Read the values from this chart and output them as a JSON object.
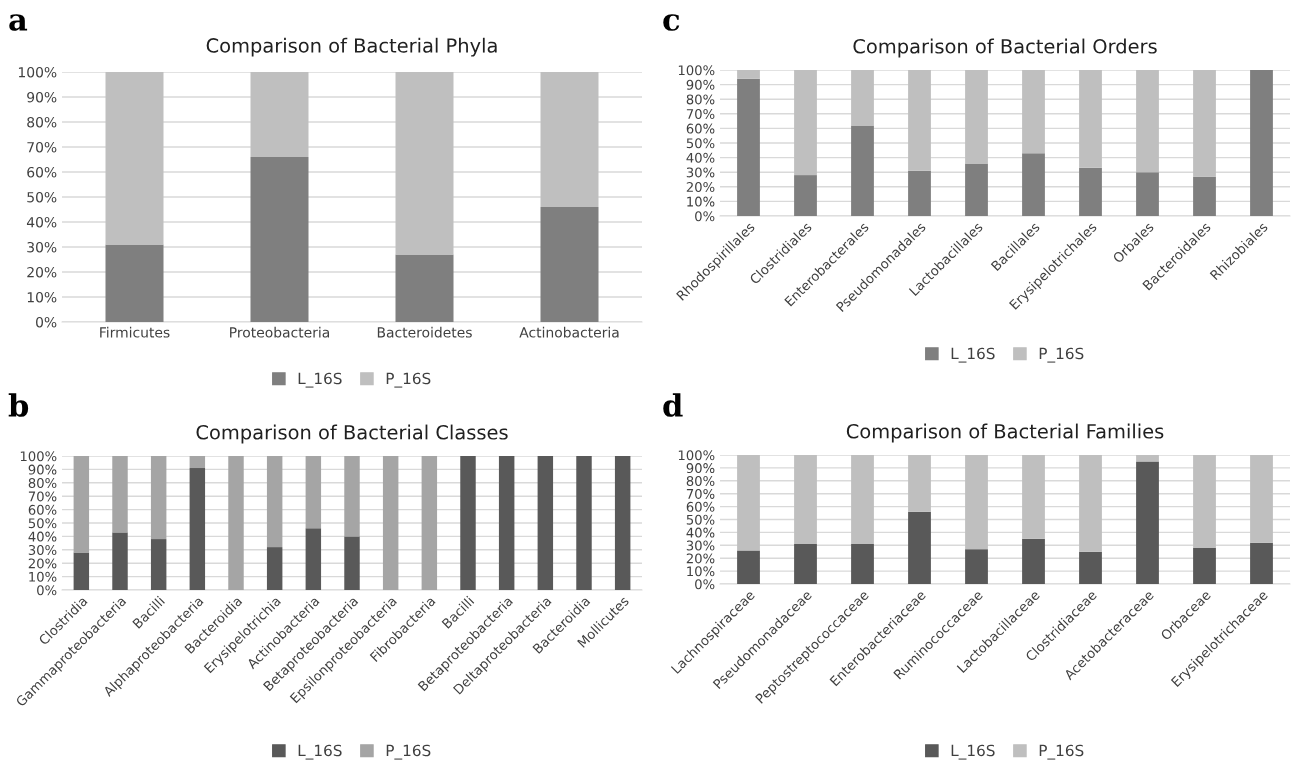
{
  "chart_data": [
    {
      "type": "bar",
      "stacked": true,
      "title": "Comparison of Bacterial Phyla",
      "annotations": [
        "a"
      ],
      "categories": [
        "Firmicutes",
        "Proteobacteria",
        "Bacteroidetes",
        "Actinobacteria"
      ],
      "series": [
        {
          "name": "L_16S",
          "color": "#7f7f7f",
          "values": [
            31,
            66,
            27,
            46
          ]
        },
        {
          "name": "P_16S",
          "color": "#bfbfbf",
          "values": [
            69,
            34,
            73,
            54
          ]
        }
      ],
      "ylim": [
        0,
        100
      ],
      "yticks": [
        {
          "value": 0,
          "label": "0%"
        },
        {
          "value": 10,
          "label": "10%"
        },
        {
          "value": 20,
          "label": "20%"
        },
        {
          "value": 30,
          "label": "30%"
        },
        {
          "value": 40,
          "label": "40%"
        },
        {
          "value": 50,
          "label": "50%"
        },
        {
          "value": 60,
          "label": "60%"
        },
        {
          "value": 70,
          "label": "70%"
        },
        {
          "value": 80,
          "label": "80%"
        },
        {
          "value": 90,
          "label": "90%"
        },
        {
          "value": 100,
          "label": "100%"
        }
      ],
      "grid": "y",
      "legend": "bottom"
    },
    {
      "type": "bar",
      "stacked": true,
      "title": "Comparison of Bacterial Orders",
      "annotations": [
        "c"
      ],
      "categories": [
        "Rhodospirillales",
        "Clostridiales",
        "Enterobacterales",
        "Pseudomonadales",
        "Lactobacillales",
        "Bacillales",
        "Erysipelotrichales",
        "Orbales",
        "Bacteroidales",
        "Rhizobiales"
      ],
      "series": [
        {
          "name": "L_16S",
          "color": "#7f7f7f",
          "values": [
            94,
            28,
            62,
            31,
            36,
            43,
            33,
            30,
            27,
            100
          ]
        },
        {
          "name": "P_16S",
          "color": "#bfbfbf",
          "values": [
            6,
            72,
            38,
            69,
            64,
            57,
            67,
            70,
            73,
            0
          ]
        }
      ],
      "ylim": [
        0,
        100
      ],
      "yticks": [
        {
          "value": 0,
          "label": "0%"
        },
        {
          "value": 10,
          "label": "10%"
        },
        {
          "value": 20,
          "label": "20%"
        },
        {
          "value": 30,
          "label": "30%"
        },
        {
          "value": 40,
          "label": "40%"
        },
        {
          "value": 50,
          "label": "50%"
        },
        {
          "value": 60,
          "label": "60%"
        },
        {
          "value": 70,
          "label": "70%"
        },
        {
          "value": 80,
          "label": "80%"
        },
        {
          "value": 90,
          "label": "90%"
        },
        {
          "value": 100,
          "label": "100%"
        }
      ],
      "grid": "y",
      "legend": "bottom"
    },
    {
      "type": "bar",
      "stacked": true,
      "title": "Comparison of Bacterial Classes",
      "annotations": [
        "b"
      ],
      "categories": [
        "Clostridia",
        "Gammaproteobacteria",
        "Bacilli",
        "Alphaproteobacteria",
        "Bacteroidia",
        "Erysipelotrichia",
        "Actinobacteria",
        "Betaproteobacteria",
        "Epsilonproteobacteria",
        "Fibrobacteria",
        "Bacilli",
        "Betaproteobacteria",
        "Deltaproteobacteria",
        "Bacteroidia",
        "Mollicutes"
      ],
      "series": [
        {
          "name": "L_16S",
          "color": "#595959",
          "values": [
            28,
            43,
            38,
            91,
            0,
            32,
            46,
            40,
            0,
            0,
            100,
            100,
            100,
            100,
            100
          ]
        },
        {
          "name": "P_16S",
          "color": "#a5a5a5",
          "values": [
            72,
            57,
            62,
            9,
            100,
            68,
            54,
            60,
            100,
            100,
            0,
            0,
            0,
            0,
            0
          ]
        }
      ],
      "ylim": [
        0,
        100
      ],
      "yticks": [
        {
          "value": 0,
          "label": "0%"
        },
        {
          "value": 10,
          "label": "10%"
        },
        {
          "value": 20,
          "label": "20%"
        },
        {
          "value": 30,
          "label": "30%"
        },
        {
          "value": 40,
          "label": "40%"
        },
        {
          "value": 50,
          "label": "50%"
        },
        {
          "value": 60,
          "label": "60%"
        },
        {
          "value": 70,
          "label": "70%"
        },
        {
          "value": 80,
          "label": "80%"
        },
        {
          "value": 90,
          "label": "90%"
        },
        {
          "value": 100,
          "label": "100%"
        }
      ],
      "grid": "y",
      "legend": "bottom"
    },
    {
      "type": "bar",
      "stacked": true,
      "title": "Comparison of Bacterial Families",
      "annotations": [
        "d"
      ],
      "categories": [
        "Lachnospiraceae",
        "Pseudomonadaceae",
        "Peptostreptococcaceae",
        "Enterobacteriaceae",
        "Ruminococcaceae",
        "Lactobacillaceae",
        "Clostridiaceae",
        "Acetobacteraceae",
        "Orbaceae",
        "Erysipelotrichaceae"
      ],
      "series": [
        {
          "name": "L_16S",
          "color": "#595959",
          "values": [
            26,
            31,
            31,
            56,
            27,
            35,
            25,
            95,
            28,
            32
          ]
        },
        {
          "name": "P_16S",
          "color": "#bfbfbf",
          "values": [
            74,
            69,
            69,
            44,
            73,
            65,
            75,
            5,
            72,
            68
          ]
        }
      ],
      "ylim": [
        0,
        100
      ],
      "yticks": [
        {
          "value": 0,
          "label": "0%"
        },
        {
          "value": 10,
          "label": "10%"
        },
        {
          "value": 20,
          "label": "20%"
        },
        {
          "value": 30,
          "label": "30%"
        },
        {
          "value": 40,
          "label": "40%"
        },
        {
          "value": 50,
          "label": "50%"
        },
        {
          "value": 60,
          "label": "60%"
        },
        {
          "value": 70,
          "label": "70%"
        },
        {
          "value": 80,
          "label": "80%"
        },
        {
          "value": 90,
          "label": "90%"
        },
        {
          "value": 100,
          "label": "100%"
        }
      ],
      "grid": "y",
      "legend": "bottom"
    }
  ]
}
